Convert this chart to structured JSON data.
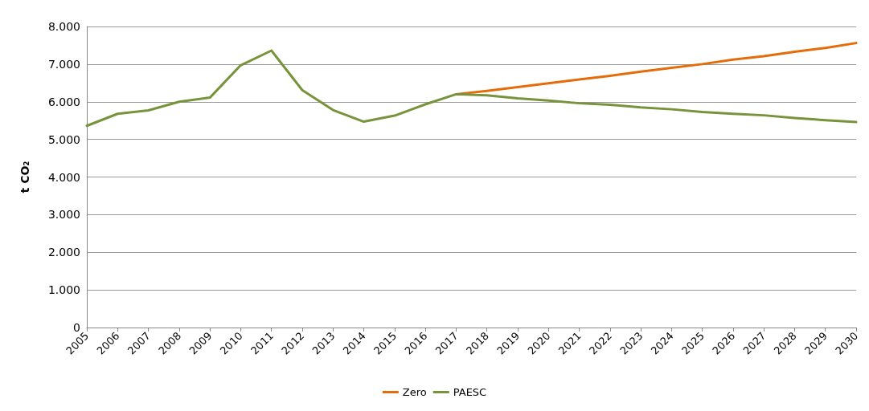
{
  "chart_data": {
    "type": "line",
    "ylabel": "t CO₂",
    "categories": [
      "2005",
      "2006",
      "2007",
      "2008",
      "2009",
      "2010",
      "2011",
      "2012",
      "2013",
      "2014",
      "2015",
      "2016",
      "2017",
      "2018",
      "2019",
      "2020",
      "2021",
      "2022",
      "2023",
      "2024",
      "2025",
      "2026",
      "2027",
      "2028",
      "2029",
      "2030"
    ],
    "series": [
      {
        "name": "Zero",
        "color": "#e46c0a",
        "values": [
          null,
          null,
          null,
          null,
          null,
          null,
          null,
          null,
          null,
          null,
          null,
          null,
          6200,
          6290,
          6390,
          6490,
          6590,
          6690,
          6800,
          6900,
          7000,
          7120,
          7210,
          7330,
          7430,
          7560
        ]
      },
      {
        "name": "PAESC",
        "color": "#77933c",
        "values": [
          5360,
          5680,
          5770,
          6000,
          6110,
          6970,
          7360,
          6310,
          5780,
          5470,
          5630,
          5930,
          6200,
          6170,
          6090,
          6030,
          5960,
          5920,
          5850,
          5800,
          5730,
          5680,
          5640,
          5570,
          5510,
          5460
        ]
      }
    ],
    "ylim": [
      0,
      8000
    ],
    "yticks": [
      0,
      {
        "value": 1000,
        "label": "1.000"
      },
      {
        "value": 2000,
        "label": "2.000"
      },
      {
        "value": 3000,
        "label": "3.000"
      },
      {
        "value": 4000,
        "label": "4.000"
      },
      {
        "value": 5000,
        "label": "5.000"
      },
      {
        "value": 6000,
        "label": "6.000"
      },
      {
        "value": 7000,
        "label": "7.000"
      },
      {
        "value": 8000,
        "label": "8.000"
      }
    ],
    "grid": "y",
    "legend": "bottom",
    "marker": "none",
    "line_style": "solid"
  }
}
